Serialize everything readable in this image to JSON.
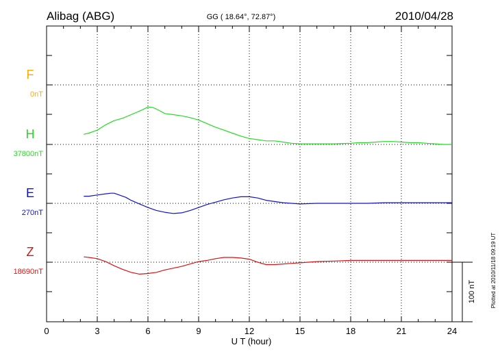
{
  "chart_data": {
    "type": "line",
    "title": "Alibag (ABG)",
    "subtitle": "GG ( 18.64°,  72.87°)",
    "date": "2010/04/28",
    "xlabel": "U T (hour)",
    "xlim": [
      0,
      24
    ],
    "x_ticks": [
      "0",
      "3",
      "6",
      "9",
      "12",
      "15",
      "18",
      "21",
      "24"
    ],
    "scale_label": "100 nT",
    "plotted_note": "Plotted at 2010/11/18 09:19 UT",
    "colors": {
      "F": "#ffaa00",
      "H": "#22dd22",
      "E": "#1010cc",
      "Z": "#dd1111"
    },
    "channels": [
      {
        "name": "F",
        "baseline": "0nT",
        "color": "#ffaa00",
        "x": [],
        "y": []
      },
      {
        "name": "H",
        "baseline": "37800nT",
        "color": "#22dd22",
        "x": [
          2.2,
          2.5,
          3,
          3.5,
          4,
          4.5,
          5,
          5.5,
          5.8,
          6,
          6.3,
          6.6,
          7,
          7.5,
          8,
          8.5,
          9,
          9.5,
          10,
          10.5,
          11,
          11.5,
          12,
          12.5,
          13,
          13.5,
          14,
          14.5,
          15,
          15.5,
          16,
          17,
          18,
          18.5,
          19,
          19.5,
          20,
          20.5,
          21,
          21.5,
          22,
          22.5,
          23,
          23.5,
          24
        ],
        "y": [
          17,
          19,
          24,
          33,
          40,
          44,
          50,
          56,
          60,
          63,
          62,
          58,
          52,
          50,
          48,
          45,
          41,
          35,
          29,
          24,
          19,
          14,
          10,
          8,
          6,
          6,
          4,
          2,
          1,
          1,
          1,
          1,
          2,
          3,
          3,
          4,
          5,
          5,
          4,
          3,
          3,
          2,
          1,
          0,
          0
        ]
      },
      {
        "name": "E",
        "baseline": "270nT",
        "color": "#1010cc",
        "x": [
          2.2,
          2.5,
          3,
          3.5,
          3.8,
          4,
          4.3,
          4.7,
          5,
          5.5,
          6,
          6.5,
          7,
          7.5,
          8,
          8.5,
          9,
          9.5,
          10,
          10.5,
          11,
          11.5,
          12,
          12.5,
          13,
          13.5,
          14,
          14.5,
          15,
          16,
          17,
          18,
          19,
          20,
          21,
          22,
          23,
          24
        ],
        "y": [
          12,
          12,
          14,
          16,
          17,
          17,
          14,
          10,
          5,
          -1,
          -7,
          -12,
          -15,
          -17,
          -16,
          -12,
          -7,
          -2,
          2,
          6,
          9,
          11,
          11,
          9,
          5,
          3,
          1,
          0,
          -1,
          0,
          0,
          0,
          0,
          1,
          1,
          1,
          1,
          1
        ]
      },
      {
        "name": "Z",
        "baseline": "18690nT",
        "color": "#dd1111",
        "x": [
          2.2,
          2.5,
          3,
          3.5,
          4,
          4.5,
          5,
          5.5,
          6,
          6.5,
          7,
          7.5,
          8,
          8.5,
          9,
          9.5,
          10,
          10.5,
          11,
          11.5,
          12,
          12.5,
          13,
          13.5,
          14,
          14.5,
          15,
          16,
          17,
          18,
          19,
          20,
          21,
          22,
          23,
          24
        ],
        "y": [
          9,
          8,
          6,
          1,
          -6,
          -12,
          -17,
          -20,
          -19,
          -17,
          -13,
          -10,
          -7,
          -3,
          1,
          3,
          6,
          8,
          8,
          7,
          5,
          0,
          -4,
          -4,
          -3,
          -2,
          -1,
          1,
          2,
          3,
          3,
          3,
          3,
          3,
          3,
          3
        ]
      }
    ]
  }
}
